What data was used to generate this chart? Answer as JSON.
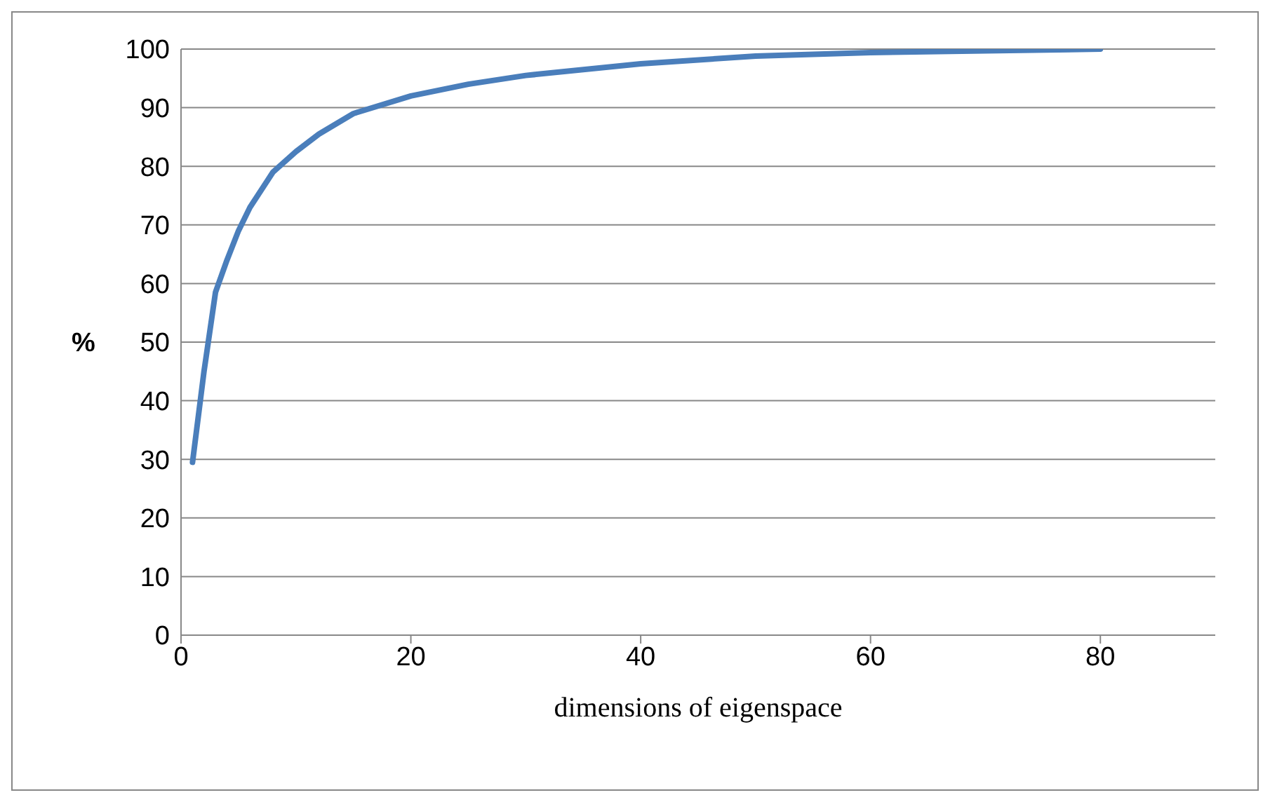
{
  "chart_data": {
    "type": "line",
    "xlabel": "dimensions of eigenspace",
    "ylabel": "%",
    "x": [
      1,
      2,
      3,
      4,
      5,
      6,
      8,
      10,
      12,
      15,
      20,
      25,
      30,
      40,
      50,
      60,
      70,
      80
    ],
    "series": [
      {
        "color": "#4a7ebb",
        "values": [
          29.5,
          45,
          58.5,
          64,
          69,
          73,
          79,
          82.5,
          85.5,
          89,
          92,
          94,
          95.5,
          97.5,
          98.8,
          99.4,
          99.7,
          100
        ]
      }
    ],
    "xlim": [
      0,
      90
    ],
    "xticks": [
      0,
      20,
      40,
      60,
      80
    ],
    "ylim": [
      0,
      100
    ],
    "yticks": [
      0,
      10,
      20,
      30,
      40,
      50,
      60,
      70,
      80,
      90,
      100
    ],
    "grid": "y",
    "legend": false,
    "marker": "none",
    "line_style": "solid"
  }
}
